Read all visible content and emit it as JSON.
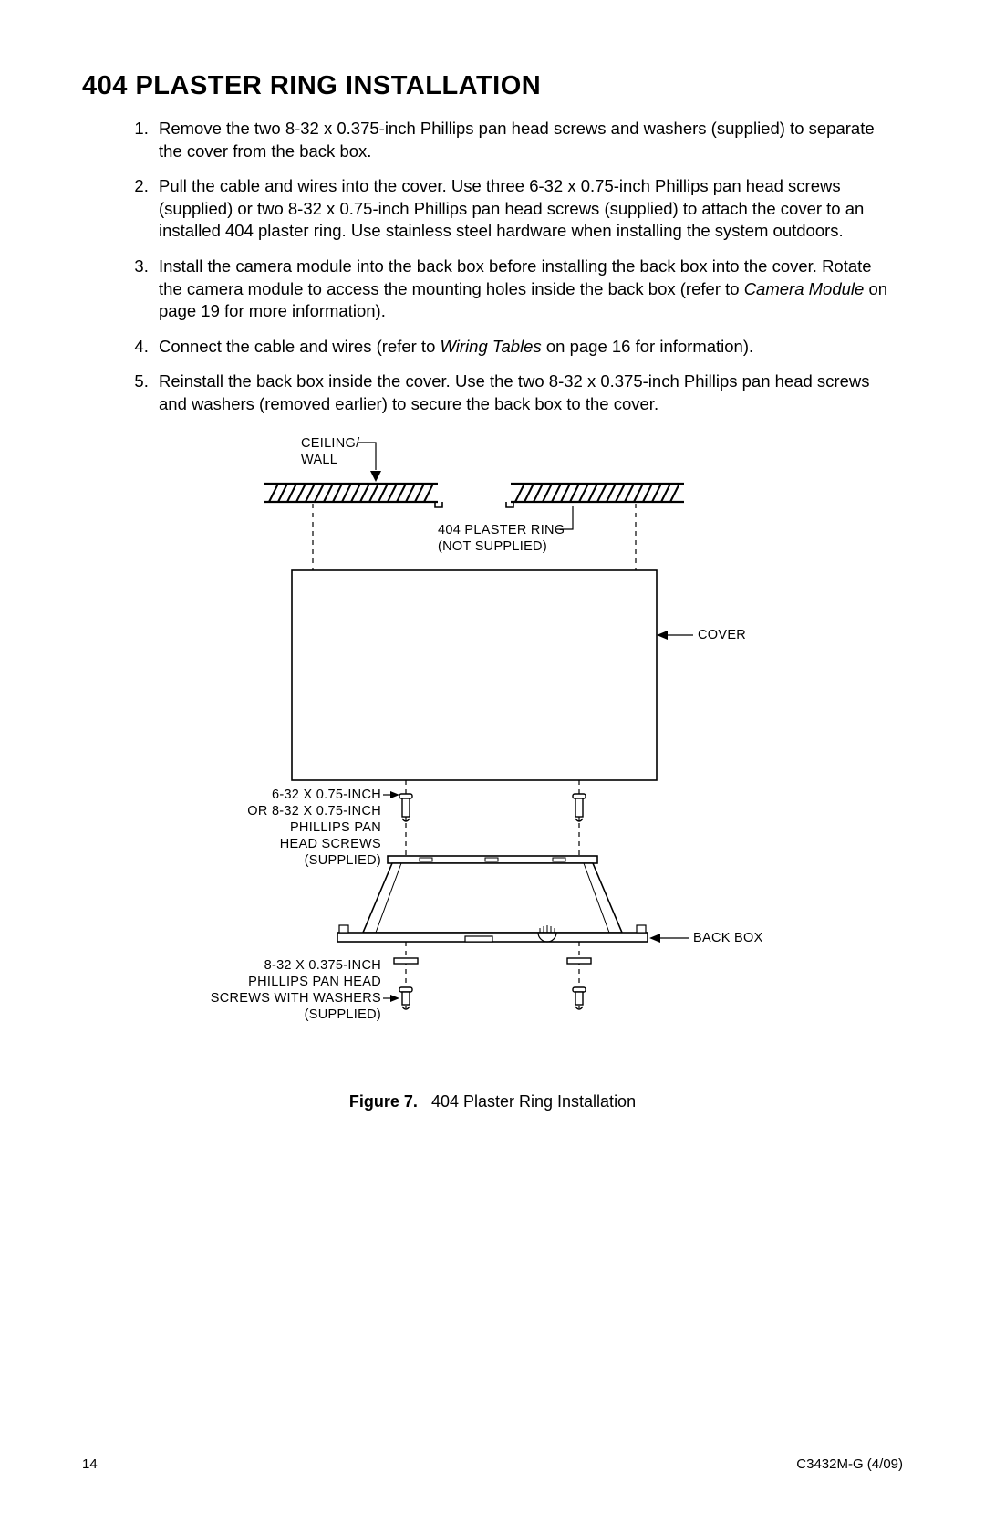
{
  "title": "404 PLASTER RING INSTALLATION",
  "steps": [
    "Remove the two 8-32 x 0.375-inch Phillips pan head screws and washers (supplied) to separate the cover from the back box.",
    "Pull the cable and wires into the cover. Use three 6-32 x 0.75-inch Phillips pan head screws (supplied) or two 8-32 x 0.75-inch Phillips pan head screws (supplied) to attach the cover to an installed 404 plaster ring. Use stainless steel hardware when installing the system outdoors.",
    "Install the camera module into the back box before installing the back box into the cover. Rotate the camera module to access the mounting holes inside the back box (refer to <i>Camera Module</i> on page 19 for more information).",
    "Connect the cable and wires (refer to <i>Wiring Tables</i> on page 16 for information).",
    "Reinstall the back box inside the cover. Use the two 8-32 x 0.375-inch Phillips pan head screws and washers (removed earlier) to secure the back box to the cover."
  ],
  "figure": {
    "number": "Figure 7.",
    "caption": "404 Plaster Ring Installation",
    "labels": {
      "ceiling_wall_1": "CEILING/",
      "ceiling_wall_2": "WALL",
      "plaster_ring_1": "404 PLASTER RING",
      "plaster_ring_2": "(NOT SUPPLIED)",
      "cover": "COVER",
      "screws_a_1": "6-32 X 0.75-INCH",
      "screws_a_2": "OR 8-32 X 0.75-INCH",
      "screws_a_3": "PHILLIPS PAN",
      "screws_a_4": "HEAD SCREWS",
      "screws_a_5": "(SUPPLIED)",
      "back_box": "BACK BOX",
      "screws_b_1": "8-32 X 0.375-INCH",
      "screws_b_2": "PHILLIPS PAN HEAD",
      "screws_b_3": "SCREWS WITH WASHERS",
      "screws_b_4": "(SUPPLIED)"
    },
    "style": {
      "stroke": "#000000",
      "stroke_width_thin": 1.2,
      "stroke_width_med": 1.6,
      "stroke_width_thick": 2.2,
      "dash": "5,5",
      "background": "#ffffff",
      "label_fontsize": 14.5
    }
  },
  "footer": {
    "page": "14",
    "doc": "C3432M-G  (4/09)"
  }
}
